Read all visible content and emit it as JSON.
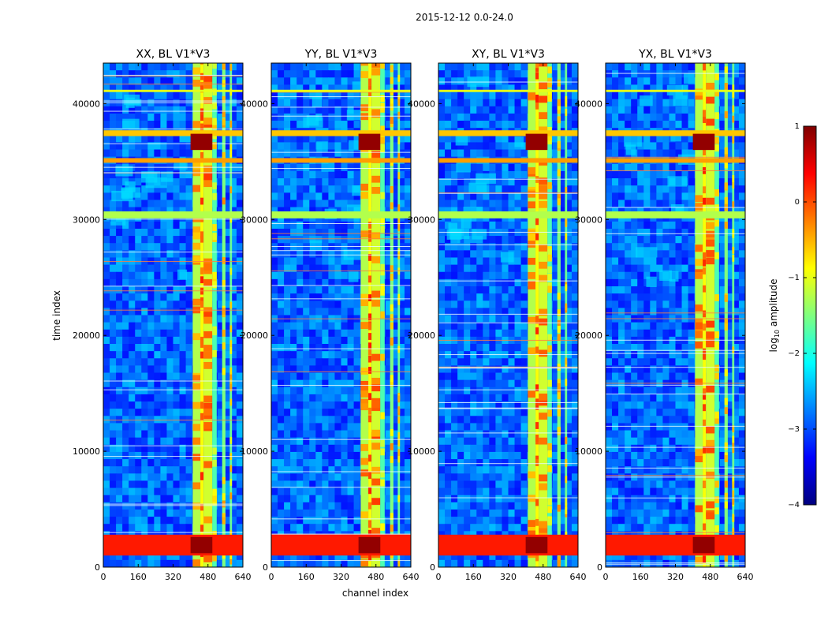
{
  "figure": {
    "suptitle": "2015-12-12 0.0-24.0",
    "xlabel": "channel index",
    "ylabel": "time index"
  },
  "chart_data": {
    "type": "heatmap",
    "x_range": [
      0,
      640
    ],
    "y_range": [
      0,
      43500
    ],
    "x_ticks": [
      0,
      160,
      320,
      480,
      640
    ],
    "y_ticks": [
      0,
      10000,
      20000,
      30000,
      40000
    ],
    "colorbar": {
      "label": "log10 amplitude",
      "label_prefix": "log",
      "label_sub": "10",
      "label_suffix": " amplitude",
      "range": [
        -4,
        1
      ],
      "ticks": [
        1,
        0,
        -1,
        -2,
        -3,
        -4
      ],
      "tick_labels": [
        "1",
        "0",
        "−1",
        "−2",
        "−3",
        "−4"
      ],
      "colormap": "jet",
      "colors": [
        "#00007f",
        "#0000ff",
        "#007fff",
        "#00ffff",
        "#7fff7f",
        "#ffff00",
        "#ff7f00",
        "#ff0000",
        "#7f0000"
      ]
    },
    "panels": [
      {
        "title": "XX, BL V1*V3",
        "pol": "XX"
      },
      {
        "title": "YY, BL V1*V3",
        "pol": "YY"
      },
      {
        "title": "XY, BL V1*V3",
        "pol": "XY"
      },
      {
        "title": "YX, BL V1*V3",
        "pol": "YX"
      }
    ],
    "vertical_bands_channels": [
      {
        "from": 410,
        "to": 445,
        "level": 0.55
      },
      {
        "from": 445,
        "to": 460,
        "level": 0.62
      },
      {
        "from": 460,
        "to": 500,
        "level": 0.58
      },
      {
        "from": 500,
        "to": 520,
        "level": 0.45
      },
      {
        "from": 545,
        "to": 560,
        "level": 0.5
      },
      {
        "from": 580,
        "to": 590,
        "level": 0.48
      }
    ],
    "horizontal_bands_time": [
      {
        "from": 1000,
        "to": 2800,
        "level": 0.85
      },
      {
        "from": 30100,
        "to": 30700,
        "level": 0.55
      },
      {
        "from": 34900,
        "to": 35300,
        "level": 0.72
      },
      {
        "from": 37200,
        "to": 37700,
        "level": 0.68
      },
      {
        "from": 41000,
        "to": 41200,
        "level": 0.6
      }
    ],
    "hot_blocks": [
      {
        "t_from": 36000,
        "t_to": 37400,
        "c_from": 400,
        "c_to": 500,
        "level": 0.98
      },
      {
        "t_from": 1200,
        "t_to": 2600,
        "c_from": 400,
        "c_to": 500,
        "level": 0.98
      }
    ]
  }
}
